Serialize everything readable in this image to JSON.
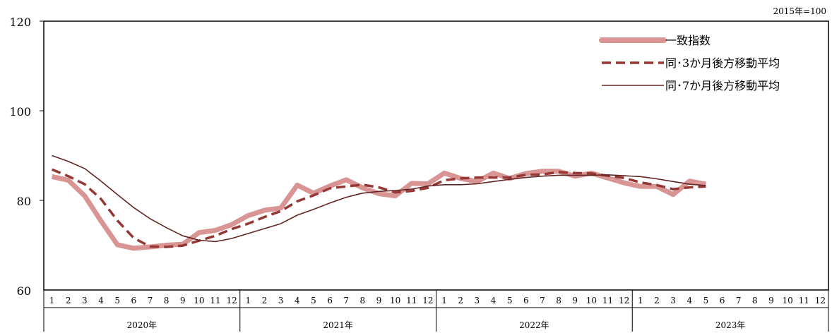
{
  "chart_data": {
    "type": "line",
    "unit_note": "2015年=100",
    "ylim": [
      60,
      120
    ],
    "y_ticks": [
      "60",
      "80",
      "100",
      "120"
    ],
    "months": [
      "1",
      "2",
      "3",
      "4",
      "5",
      "6",
      "7",
      "8",
      "9",
      "10",
      "11",
      "12"
    ],
    "years": [
      "2020年",
      "2021年",
      "2022年",
      "2023年"
    ],
    "grid": false,
    "legend_position": "top-right",
    "series": [
      {
        "name": "一致指数",
        "color": "#d99594",
        "style": "solid-thick",
        "values": [
          85.3,
          84.5,
          81.0,
          75.4,
          70.1,
          69.3,
          69.6,
          70.0,
          70.2,
          72.8,
          73.3,
          74.6,
          76.6,
          77.8,
          78.3,
          83.4,
          81.6,
          83.2,
          84.6,
          82.8,
          81.5,
          81.0,
          83.8,
          83.7,
          86.1,
          84.9,
          84.2,
          86.1,
          84.9,
          86.0,
          86.5,
          86.5,
          85.4,
          86.1,
          85.0,
          83.9,
          83.1,
          83.1,
          81.3,
          84.3,
          83.6
        ]
      },
      {
        "name": "同･3か月後方移動平均",
        "color": "#953735",
        "style": "dashed",
        "values": [
          86.9,
          85.4,
          83.6,
          80.3,
          75.5,
          71.6,
          69.7,
          69.6,
          69.9,
          71.0,
          72.1,
          73.6,
          74.8,
          76.3,
          77.6,
          79.8,
          81.1,
          82.7,
          83.1,
          83.5,
          82.9,
          81.8,
          82.1,
          82.8,
          84.5,
          84.9,
          85.1,
          85.1,
          85.1,
          85.7,
          85.8,
          86.3,
          86.1,
          86.0,
          85.5,
          85.0,
          84.0,
          83.4,
          82.5,
          82.9,
          83.1
        ]
      },
      {
        "name": "同･7か月後方移動平均",
        "color": "#632523",
        "style": "solid-thin",
        "values": [
          90.0,
          88.7,
          87.1,
          84.3,
          81.3,
          78.4,
          75.9,
          73.9,
          72.1,
          71.1,
          70.8,
          71.5,
          72.6,
          73.7,
          74.8,
          76.7,
          78.0,
          79.4,
          80.7,
          81.6,
          82.0,
          82.2,
          82.5,
          83.2,
          83.5,
          83.5,
          83.7,
          84.2,
          84.7,
          85.1,
          85.4,
          85.6,
          85.6,
          85.6,
          85.7,
          85.5,
          85.3,
          84.8,
          84.2,
          83.6,
          83.3
        ]
      }
    ]
  }
}
